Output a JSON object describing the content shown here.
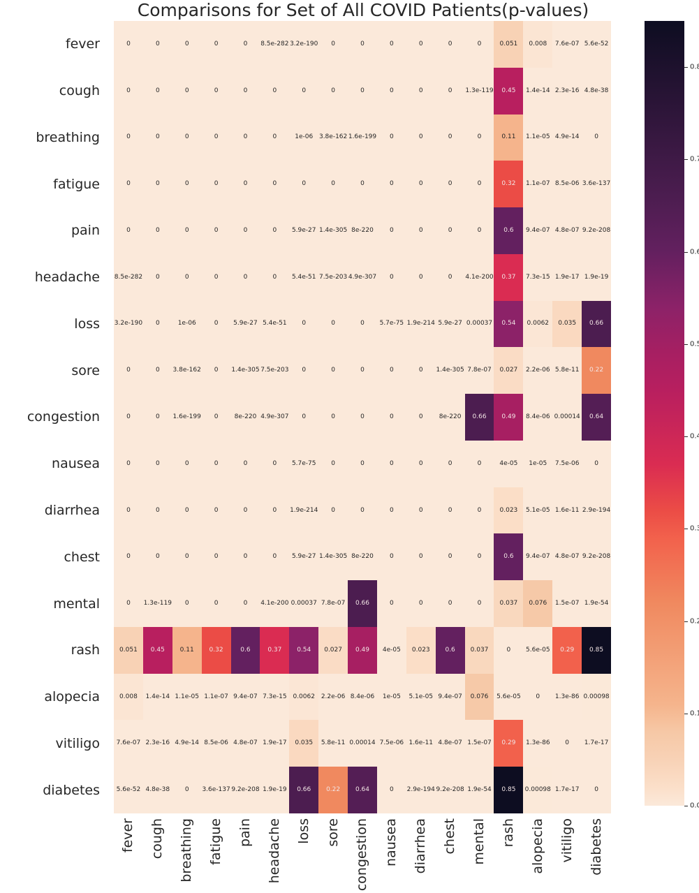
{
  "title": "Comparisons for Set of All COVID Patients(p-values)",
  "chart_data": {
    "type": "heatmap",
    "labels": [
      "fever",
      "cough",
      "breathing",
      "fatigue",
      "pain",
      "headache",
      "loss",
      "sore",
      "congestion",
      "nausea",
      "diarrhea",
      "chest",
      "mental",
      "rash",
      "alopecia",
      "vitiligo",
      "diabetes"
    ],
    "matrix": [
      [
        "0",
        "0",
        "0",
        "0",
        "0",
        "8.5e-282",
        "3.2e-190",
        "0",
        "0",
        "0",
        "0",
        "0",
        "0",
        "0.051",
        "0.008",
        "7.6e-07",
        "5.6e-52"
      ],
      [
        "0",
        "0",
        "0",
        "0",
        "0",
        "0",
        "0",
        "0",
        "0",
        "0",
        "0",
        "0",
        "1.3e-119",
        "0.45",
        "1.4e-14",
        "2.3e-16",
        "4.8e-38"
      ],
      [
        "0",
        "0",
        "0",
        "0",
        "0",
        "0",
        "1e-06",
        "3.8e-162",
        "1.6e-199",
        "0",
        "0",
        "0",
        "0",
        "0.11",
        "1.1e-05",
        "4.9e-14",
        "0"
      ],
      [
        "0",
        "0",
        "0",
        "0",
        "0",
        "0",
        "0",
        "0",
        "0",
        "0",
        "0",
        "0",
        "0",
        "0.32",
        "1.1e-07",
        "8.5e-06",
        "3.6e-137"
      ],
      [
        "0",
        "0",
        "0",
        "0",
        "0",
        "0",
        "5.9e-27",
        "1.4e-305",
        "8e-220",
        "0",
        "0",
        "0",
        "0",
        "0.6",
        "9.4e-07",
        "4.8e-07",
        "9.2e-208"
      ],
      [
        "8.5e-282",
        "0",
        "0",
        "0",
        "0",
        "0",
        "5.4e-51",
        "7.5e-203",
        "4.9e-307",
        "0",
        "0",
        "0",
        "4.1e-200",
        "0.37",
        "7.3e-15",
        "1.9e-17",
        "1.9e-19"
      ],
      [
        "3.2e-190",
        "0",
        "1e-06",
        "0",
        "5.9e-27",
        "5.4e-51",
        "0",
        "0",
        "0",
        "5.7e-75",
        "1.9e-214",
        "5.9e-27",
        "0.00037",
        "0.54",
        "0.0062",
        "0.035",
        "0.66"
      ],
      [
        "0",
        "0",
        "3.8e-162",
        "0",
        "1.4e-305",
        "7.5e-203",
        "0",
        "0",
        "0",
        "0",
        "0",
        "1.4e-305",
        "7.8e-07",
        "0.027",
        "2.2e-06",
        "5.8e-11",
        "0.22"
      ],
      [
        "0",
        "0",
        "1.6e-199",
        "0",
        "8e-220",
        "4.9e-307",
        "0",
        "0",
        "0",
        "0",
        "0",
        "8e-220",
        "0.66",
        "0.49",
        "8.4e-06",
        "0.00014",
        "0.64"
      ],
      [
        "0",
        "0",
        "0",
        "0",
        "0",
        "0",
        "5.7e-75",
        "0",
        "0",
        "0",
        "0",
        "0",
        "0",
        "4e-05",
        "1e-05",
        "7.5e-06",
        "0"
      ],
      [
        "0",
        "0",
        "0",
        "0",
        "0",
        "0",
        "1.9e-214",
        "0",
        "0",
        "0",
        "0",
        "0",
        "0",
        "0.023",
        "5.1e-05",
        "1.6e-11",
        "2.9e-194"
      ],
      [
        "0",
        "0",
        "0",
        "0",
        "0",
        "0",
        "5.9e-27",
        "1.4e-305",
        "8e-220",
        "0",
        "0",
        "0",
        "0",
        "0.6",
        "9.4e-07",
        "4.8e-07",
        "9.2e-208"
      ],
      [
        "0",
        "1.3e-119",
        "0",
        "0",
        "0",
        "4.1e-200",
        "0.00037",
        "7.8e-07",
        "0.66",
        "0",
        "0",
        "0",
        "0",
        "0.037",
        "0.076",
        "1.5e-07",
        "1.9e-54"
      ],
      [
        "0.051",
        "0.45",
        "0.11",
        "0.32",
        "0.6",
        "0.37",
        "0.54",
        "0.027",
        "0.49",
        "4e-05",
        "0.023",
        "0.6",
        "0.037",
        "0",
        "5.6e-05",
        "0.29",
        "0.85"
      ],
      [
        "0.008",
        "1.4e-14",
        "1.1e-05",
        "1.1e-07",
        "9.4e-07",
        "7.3e-15",
        "0.0062",
        "2.2e-06",
        "8.4e-06",
        "1e-05",
        "5.1e-05",
        "9.4e-07",
        "0.076",
        "5.6e-05",
        "0",
        "1.3e-86",
        "0.00098"
      ],
      [
        "7.6e-07",
        "2.3e-16",
        "4.9e-14",
        "8.5e-06",
        "4.8e-07",
        "1.9e-17",
        "0.035",
        "5.8e-11",
        "0.00014",
        "7.5e-06",
        "1.6e-11",
        "4.8e-07",
        "1.5e-07",
        "0.29",
        "1.3e-86",
        "0",
        "1.7e-17"
      ],
      [
        "5.6e-52",
        "4.8e-38",
        "0",
        "3.6e-137",
        "9.2e-208",
        "1.9e-19",
        "0.66",
        "0.22",
        "0.64",
        "0",
        "2.9e-194",
        "9.2e-208",
        "1.9e-54",
        "0.85",
        "0.00098",
        "1.7e-17",
        "0"
      ]
    ],
    "vmin": 0,
    "vmax": 0.85,
    "colorbar_ticks": [
      "0.8",
      "0.7",
      "0.6",
      "0.5",
      "0.4",
      "0.3",
      "0.2",
      "0.1",
      "0.0"
    ],
    "colormap_name": "rocket_r",
    "colormap_stops": [
      [
        0.0,
        "#fbe9da"
      ],
      [
        0.02,
        "#fbdfc9"
      ],
      [
        0.05,
        "#f8d2b6"
      ],
      [
        0.08,
        "#f6c8a6"
      ],
      [
        0.11,
        "#f5b48c"
      ],
      [
        0.22,
        "#f0895f"
      ],
      [
        0.29,
        "#f2614c"
      ],
      [
        0.32,
        "#eb4c46"
      ],
      [
        0.37,
        "#da2c52"
      ],
      [
        0.45,
        "#b81f5f"
      ],
      [
        0.49,
        "#a71f62"
      ],
      [
        0.54,
        "#8c2268"
      ],
      [
        0.6,
        "#63205f"
      ],
      [
        0.66,
        "#4c1d50"
      ],
      [
        0.85,
        "#0d0d21"
      ]
    ],
    "cell_text_dark": "#262626",
    "cell_text_light": "#f2e5e5",
    "text_color_threshold": 0.2
  }
}
